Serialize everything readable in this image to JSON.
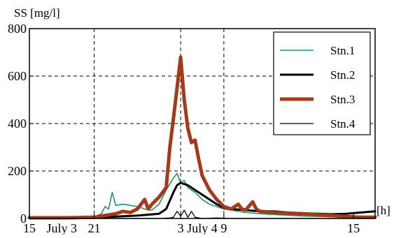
{
  "chart_data": {
    "type": "line",
    "title": "",
    "ylabel": "SS [mg/l]",
    "xlabel": "[h]",
    "ylim": [
      0,
      800
    ],
    "xlim": [
      0,
      48
    ],
    "grid": "dashed",
    "legend_position": "top-right",
    "x_ticks": [
      {
        "x": 0,
        "label": "15"
      },
      {
        "x": 9,
        "label": "21"
      },
      {
        "x": 21,
        "label": "3"
      },
      {
        "x": 27,
        "label": "9"
      },
      {
        "x": 45,
        "label": "15"
      }
    ],
    "day_labels": [
      {
        "x": 4.5,
        "label": "July 3"
      },
      {
        "x": 24,
        "label": "July 4"
      }
    ],
    "vgrid_x": [
      9,
      21,
      27
    ],
    "y_ticks": [
      {
        "y": 0,
        "label": "0"
      },
      {
        "y": 200,
        "label": "200"
      },
      {
        "y": 400,
        "label": "400"
      },
      {
        "y": 600,
        "label": "600"
      },
      {
        "y": 800,
        "label": "800"
      }
    ],
    "series": [
      {
        "name": "Stn.1",
        "color": "#1f8f7f",
        "width": 1.6,
        "points": [
          [
            0,
            5
          ],
          [
            3,
            6
          ],
          [
            5,
            8
          ],
          [
            6,
            4
          ],
          [
            9,
            6
          ],
          [
            10,
            20
          ],
          [
            10.5,
            50
          ],
          [
            11,
            40
          ],
          [
            11.5,
            110
          ],
          [
            12,
            55
          ],
          [
            13,
            60
          ],
          [
            14,
            55
          ],
          [
            15,
            50
          ],
          [
            16,
            40
          ],
          [
            17,
            35
          ],
          [
            18,
            60
          ],
          [
            19,
            120
          ],
          [
            20,
            170
          ],
          [
            20.5,
            190
          ],
          [
            21,
            150
          ],
          [
            21.5,
            160
          ],
          [
            22,
            130
          ],
          [
            23,
            110
          ],
          [
            24,
            80
          ],
          [
            25,
            60
          ],
          [
            26,
            50
          ],
          [
            27,
            40
          ],
          [
            28,
            35
          ],
          [
            30,
            25
          ],
          [
            32,
            20
          ],
          [
            35,
            15
          ],
          [
            38,
            10
          ],
          [
            41,
            8
          ],
          [
            44,
            6
          ],
          [
            48,
            5
          ]
        ]
      },
      {
        "name": "Stn.2",
        "color": "#000000",
        "width": 3,
        "points": [
          [
            0,
            2
          ],
          [
            5,
            2
          ],
          [
            9,
            3
          ],
          [
            12,
            8
          ],
          [
            15,
            12
          ],
          [
            18,
            20
          ],
          [
            19,
            40
          ],
          [
            20,
            110
          ],
          [
            20.5,
            140
          ],
          [
            21,
            150
          ],
          [
            22,
            140
          ],
          [
            23,
            120
          ],
          [
            24,
            100
          ],
          [
            25,
            80
          ],
          [
            26,
            60
          ],
          [
            27,
            45
          ],
          [
            28,
            40
          ],
          [
            30,
            35
          ],
          [
            32,
            30
          ],
          [
            34,
            30
          ],
          [
            36,
            25
          ],
          [
            38,
            22
          ],
          [
            40,
            20
          ],
          [
            42,
            18
          ],
          [
            44,
            20
          ],
          [
            46,
            25
          ],
          [
            48,
            30
          ]
        ]
      },
      {
        "name": "Stn.3",
        "color": "#a53a1a",
        "width": 5,
        "points": [
          [
            0,
            3
          ],
          [
            5,
            3
          ],
          [
            9,
            5
          ],
          [
            12,
            20
          ],
          [
            13,
            30
          ],
          [
            14,
            25
          ],
          [
            15,
            40
          ],
          [
            16,
            80
          ],
          [
            16.5,
            40
          ],
          [
            17,
            60
          ],
          [
            18,
            90
          ],
          [
            19,
            130
          ],
          [
            19.5,
            300
          ],
          [
            20,
            420
          ],
          [
            20.5,
            550
          ],
          [
            21,
            680
          ],
          [
            21.5,
            500
          ],
          [
            22,
            380
          ],
          [
            22.5,
            320
          ],
          [
            23,
            330
          ],
          [
            23.5,
            250
          ],
          [
            24,
            180
          ],
          [
            25,
            120
          ],
          [
            26,
            80
          ],
          [
            27,
            50
          ],
          [
            28,
            40
          ],
          [
            29,
            60
          ],
          [
            29.5,
            40
          ],
          [
            30,
            35
          ],
          [
            31,
            70
          ],
          [
            31.5,
            40
          ],
          [
            32,
            30
          ],
          [
            34,
            25
          ],
          [
            36,
            22
          ],
          [
            38,
            20
          ],
          [
            40,
            15
          ],
          [
            42,
            12
          ],
          [
            44,
            8
          ],
          [
            46,
            5
          ],
          [
            48,
            5
          ]
        ]
      },
      {
        "name": "Stn.4",
        "color": "#000000",
        "width": 1.3,
        "points": [
          [
            0,
            0
          ],
          [
            18,
            0
          ],
          [
            19.5,
            2
          ],
          [
            20,
            5
          ],
          [
            20.5,
            30
          ],
          [
            21,
            10
          ],
          [
            21.5,
            35
          ],
          [
            22,
            5
          ],
          [
            22.5,
            30
          ],
          [
            23,
            5
          ],
          [
            24,
            0
          ],
          [
            26,
            2
          ],
          [
            28,
            0
          ],
          [
            48,
            0
          ]
        ]
      }
    ]
  },
  "legend": {
    "items": [
      {
        "label": "Stn.1"
      },
      {
        "label": "Stn.2"
      },
      {
        "label": "Stn.3"
      },
      {
        "label": "Stn.4"
      }
    ]
  }
}
